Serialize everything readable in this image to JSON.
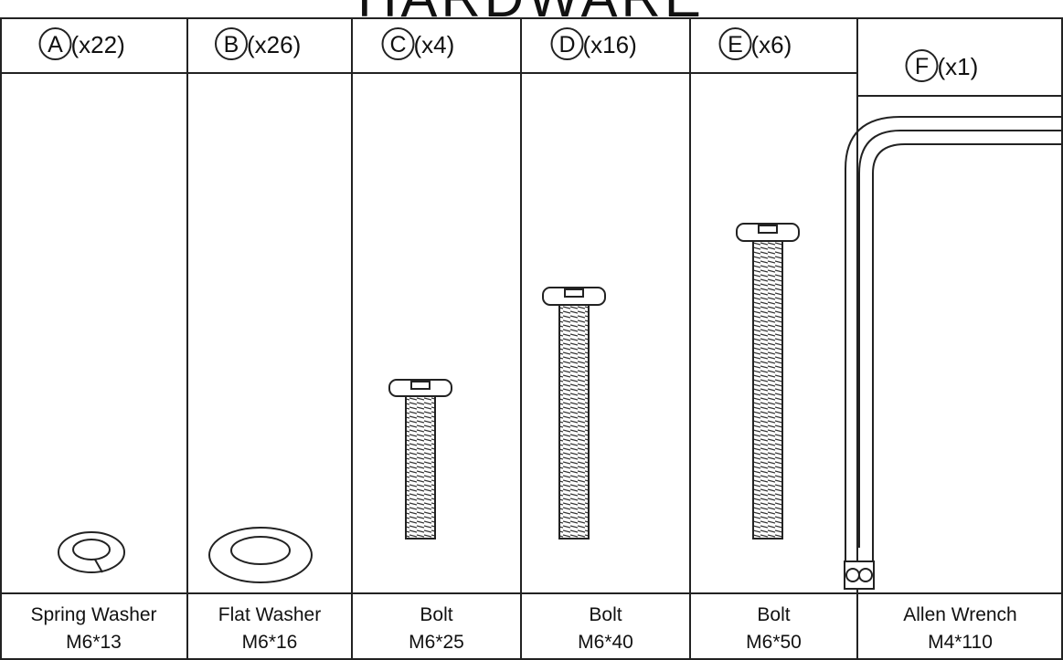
{
  "header": {
    "title": "HARDWARE"
  },
  "items": [
    {
      "letter": "A",
      "quantity": "(x22)",
      "name": "Spring Washer",
      "size": "M6*13"
    },
    {
      "letter": "B",
      "quantity": "(x26)",
      "name": "Flat Washer",
      "size": "M6*16"
    },
    {
      "letter": "C",
      "quantity": "(x4)",
      "name": "Bolt",
      "size": "M6*25"
    },
    {
      "letter": "D",
      "quantity": "(x16)",
      "name": "Bolt",
      "size": "M6*40"
    },
    {
      "letter": "E",
      "quantity": "(x6)",
      "name": "Bolt",
      "size": "M6*50"
    },
    {
      "letter": "F",
      "quantity": "(x1)",
      "name": "Allen Wrench",
      "size": "M4*110"
    }
  ]
}
